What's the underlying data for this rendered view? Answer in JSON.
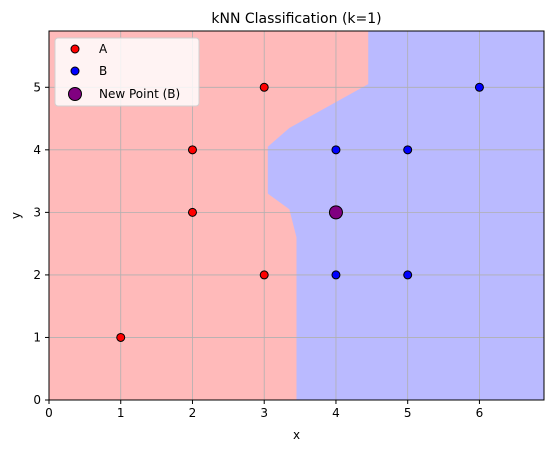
{
  "chart_data": {
    "type": "scatter",
    "title": "kNN Classification (k=1)",
    "xlabel": "x",
    "ylabel": "y",
    "xlim": [
      0,
      6.9
    ],
    "ylim": [
      0,
      5.9
    ],
    "x_ticks": [
      0,
      1,
      2,
      3,
      4,
      5,
      6
    ],
    "y_ticks": [
      0,
      1,
      2,
      3,
      4,
      5
    ],
    "x_tick_labels": [
      "0",
      "1",
      "2",
      "3",
      "4",
      "5",
      "6"
    ],
    "y_tick_labels": [
      "0",
      "1",
      "2",
      "3",
      "4",
      "5"
    ],
    "grid": true,
    "legend_position": "upper-left",
    "series": [
      {
        "name": "A",
        "color": "#ff0000",
        "points": [
          {
            "x": 1,
            "y": 1
          },
          {
            "x": 2,
            "y": 3
          },
          {
            "x": 2,
            "y": 4
          },
          {
            "x": 3,
            "y": 2
          },
          {
            "x": 3,
            "y": 5
          }
        ]
      },
      {
        "name": "B",
        "color": "#0000ff",
        "points": [
          {
            "x": 4,
            "y": 2
          },
          {
            "x": 4,
            "y": 4
          },
          {
            "x": 5,
            "y": 2
          },
          {
            "x": 5,
            "y": 4
          },
          {
            "x": 6,
            "y": 5
          }
        ]
      },
      {
        "name": "New Point (B)",
        "color": "#800080",
        "points": [
          {
            "x": 4,
            "y": 3
          }
        ]
      }
    ],
    "regions": [
      {
        "class": "A",
        "color": "#ffbaba"
      },
      {
        "class": "B",
        "color": "#babaff"
      }
    ],
    "decision_boundary": [
      {
        "x": 4.45,
        "y": 5.9
      },
      {
        "x": 4.45,
        "y": 5.05
      },
      {
        "x": 3.35,
        "y": 4.35
      },
      {
        "x": 3.05,
        "y": 4.05
      },
      {
        "x": 3.05,
        "y": 3.3
      },
      {
        "x": 3.35,
        "y": 3.05
      },
      {
        "x": 3.45,
        "y": 2.6
      },
      {
        "x": 3.45,
        "y": 0
      }
    ]
  }
}
